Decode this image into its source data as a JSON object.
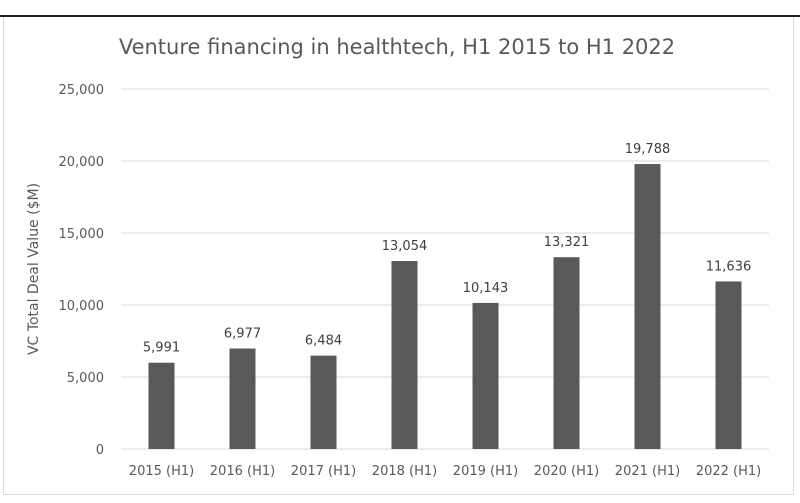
{
  "chart_data": {
    "type": "bar",
    "title": "Venture financing in healthtech, H1 2015 to H1 2022",
    "xlabel": "",
    "ylabel": "VC Total Deal Value ($M)",
    "categories": [
      "2015 (H1)",
      "2016 (H1)",
      "2017 (H1)",
      "2018 (H1)",
      "2019 (H1)",
      "2020 (H1)",
      "2021 (H1)",
      "2022 (H1)"
    ],
    "values": [
      5991,
      6977,
      6484,
      13054,
      10143,
      13321,
      19788,
      11636
    ],
    "data_labels": [
      "5,991",
      "6,977",
      "6,484",
      "13,054",
      "10,143",
      "13,321",
      "19,788",
      "11,636"
    ],
    "ylim": [
      0,
      25000
    ],
    "yticks": [
      0,
      5000,
      10000,
      15000,
      20000,
      25000
    ],
    "ytick_labels": [
      "0",
      "5,000",
      "10,000",
      "15,000",
      "20,000",
      "25,000"
    ],
    "grid": true,
    "legend": "none",
    "bar_color": "#595959",
    "grid_color": "#d9d9d9"
  }
}
